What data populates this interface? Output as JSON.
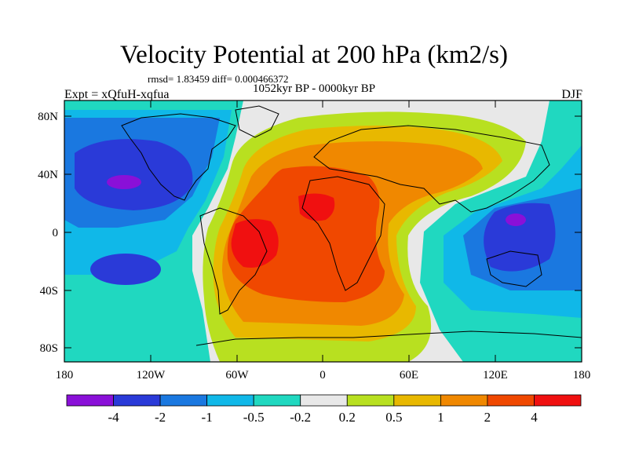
{
  "title": "Velocity Potential at 200 hPa (km2/s)",
  "stats_text": "rmsd= 1.83459 diff= 0.000466372",
  "period_text": "1052kyr BP - 0000kyr BP",
  "experiment_text": "Expt = xQfuH-xqfua",
  "season_text": "DJF",
  "axes": {
    "x_ticks": [
      "180",
      "120W",
      "60W",
      "0",
      "60E",
      "120E",
      "180"
    ],
    "y_ticks": [
      "80N",
      "40N",
      "0",
      "40S",
      "80S"
    ]
  },
  "colorbar": {
    "labels": [
      "-4",
      "-2",
      "-1",
      "-0.5",
      "-0.2",
      "0.2",
      "0.5",
      "1",
      "2",
      "4"
    ],
    "colors": [
      "#8a10d8",
      "#2a3ad8",
      "#1a78e0",
      "#10b8e8",
      "#20d8c0",
      "#e8e8e8",
      "#b8e020",
      "#e8b800",
      "#f08800",
      "#f04800",
      "#f01010"
    ]
  }
}
